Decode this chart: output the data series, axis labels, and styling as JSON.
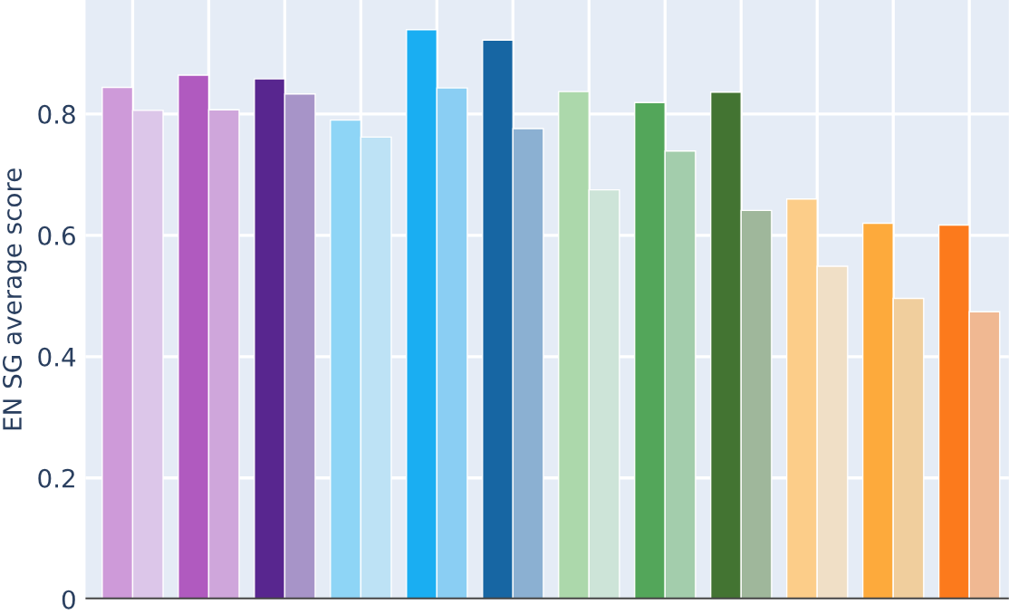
{
  "chart_data": {
    "type": "bar",
    "ylabel": "EN SG average score",
    "categories": [
      null,
      null,
      null,
      null,
      null,
      null,
      null,
      null,
      null,
      null,
      null,
      null
    ],
    "series": [
      {
        "colors": [
          "#ce9ad9",
          "#b05abf",
          "#58268f",
          "#8ed5f6",
          "#1aaef2",
          "#1766a3",
          "#acd8ab",
          "#53a65a",
          "#437432",
          "#fccd89",
          "#fdaa3c",
          "#fc7a1c"
        ],
        "values": [
          0.844,
          0.864,
          0.858,
          0.79,
          0.939,
          0.922,
          0.837,
          0.819,
          0.836,
          0.66,
          0.62,
          0.617
        ]
      },
      {
        "colors": [
          "#dcc6e9",
          "#cfa6db",
          "#a794c8",
          "#bde2f5",
          "#8acef3",
          "#8bb0d2",
          "#cde4d8",
          "#a3cdac",
          "#9fb79b",
          "#f0dfc6",
          "#f0ce9d",
          "#f0b892"
        ],
        "values": [
          0.806,
          0.807,
          0.833,
          0.762,
          0.843,
          0.776,
          0.675,
          0.739,
          0.641,
          0.549,
          0.496,
          0.474
        ]
      }
    ],
    "ylim": [
      0,
      0.988
    ],
    "yticks": [
      0,
      0.2,
      0.4,
      0.6,
      0.8
    ],
    "grid": true,
    "legend": false,
    "tick_labels": "y"
  }
}
